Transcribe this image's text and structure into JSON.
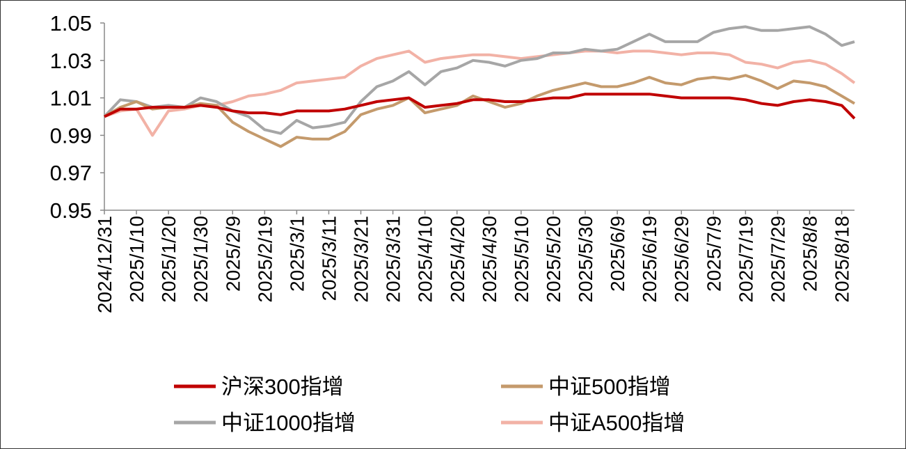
{
  "chart_data": {
    "type": "line",
    "x": [
      "2024/12/31",
      "2025/1/5",
      "2025/1/10",
      "2025/1/15",
      "2025/1/20",
      "2025/1/25",
      "2025/1/30",
      "2025/2/4",
      "2025/2/9",
      "2025/2/14",
      "2025/2/19",
      "2025/2/24",
      "2025/3/1",
      "2025/3/6",
      "2025/3/11",
      "2025/3/16",
      "2025/3/21",
      "2025/3/26",
      "2025/3/31",
      "2025/4/5",
      "2025/4/10",
      "2025/4/15",
      "2025/4/20",
      "2025/4/25",
      "2025/4/30",
      "2025/5/5",
      "2025/5/10",
      "2025/5/15",
      "2025/5/20",
      "2025/5/25",
      "2025/5/30",
      "2025/6/4",
      "2025/6/9",
      "2025/6/14",
      "2025/6/19",
      "2025/6/24",
      "2025/6/29",
      "2025/7/4",
      "2025/7/9",
      "2025/7/14",
      "2025/7/19",
      "2025/7/24",
      "2025/7/29",
      "2025/8/3",
      "2025/8/8",
      "2025/8/13",
      "2025/8/18",
      "2025/8/22"
    ],
    "xticks": [
      "2024/12/31",
      "2025/1/10",
      "2025/1/20",
      "2025/1/30",
      "2025/2/9",
      "2025/2/19",
      "2025/3/1",
      "2025/3/11",
      "2025/3/21",
      "2025/3/31",
      "2025/4/10",
      "2025/4/20",
      "2025/4/30",
      "2025/5/10",
      "2025/5/20",
      "2025/5/30",
      "2025/6/9",
      "2025/6/19",
      "2025/6/29",
      "2025/7/9",
      "2025/7/19",
      "2025/7/29",
      "2025/8/8",
      "2025/8/18"
    ],
    "ylim": [
      0.95,
      1.05
    ],
    "yticks": [
      0.95,
      0.97,
      0.99,
      1.01,
      1.03,
      1.05
    ],
    "grid": false,
    "series": [
      {
        "name": "沪深300指增",
        "color": "#c00000",
        "values": [
          1.0,
          1.004,
          1.004,
          1.005,
          1.005,
          1.005,
          1.006,
          1.005,
          1.003,
          1.002,
          1.002,
          1.001,
          1.003,
          1.003,
          1.003,
          1.004,
          1.006,
          1.008,
          1.009,
          1.01,
          1.005,
          1.006,
          1.007,
          1.009,
          1.009,
          1.008,
          1.008,
          1.009,
          1.01,
          1.01,
          1.012,
          1.012,
          1.012,
          1.012,
          1.012,
          1.011,
          1.01,
          1.01,
          1.01,
          1.01,
          1.009,
          1.007,
          1.006,
          1.008,
          1.009,
          1.008,
          1.006,
          0.999
        ]
      },
      {
        "name": "中证500指增",
        "color": "#c49a6c",
        "values": [
          1.0,
          1.005,
          1.008,
          1.004,
          1.005,
          1.005,
          1.007,
          1.006,
          0.997,
          0.992,
          0.988,
          0.984,
          0.989,
          0.988,
          0.988,
          0.992,
          1.001,
          1.004,
          1.006,
          1.01,
          1.002,
          1.004,
          1.006,
          1.011,
          1.008,
          1.005,
          1.007,
          1.011,
          1.014,
          1.016,
          1.018,
          1.016,
          1.016,
          1.018,
          1.021,
          1.018,
          1.017,
          1.02,
          1.021,
          1.02,
          1.022,
          1.019,
          1.015,
          1.019,
          1.018,
          1.016,
          1.011,
          1.007
        ]
      },
      {
        "name": "中证1000指增",
        "color": "#a6a6a6",
        "values": [
          1.0,
          1.009,
          1.008,
          1.005,
          1.006,
          1.005,
          1.01,
          1.008,
          1.003,
          1.0,
          0.993,
          0.991,
          0.998,
          0.994,
          0.995,
          0.997,
          1.008,
          1.016,
          1.019,
          1.024,
          1.017,
          1.024,
          1.026,
          1.03,
          1.029,
          1.027,
          1.03,
          1.031,
          1.034,
          1.034,
          1.036,
          1.035,
          1.036,
          1.04,
          1.044,
          1.04,
          1.04,
          1.04,
          1.045,
          1.047,
          1.048,
          1.046,
          1.046,
          1.047,
          1.048,
          1.044,
          1.038,
          1.04
        ]
      },
      {
        "name": "中证A500指增",
        "color": "#f2b2a6",
        "values": [
          1.0,
          1.003,
          1.004,
          0.99,
          1.003,
          1.004,
          1.006,
          1.006,
          1.008,
          1.011,
          1.012,
          1.014,
          1.018,
          1.019,
          1.02,
          1.021,
          1.027,
          1.031,
          1.033,
          1.035,
          1.029,
          1.031,
          1.032,
          1.033,
          1.033,
          1.032,
          1.031,
          1.032,
          1.033,
          1.034,
          1.035,
          1.035,
          1.034,
          1.035,
          1.035,
          1.034,
          1.033,
          1.034,
          1.034,
          1.033,
          1.029,
          1.028,
          1.026,
          1.029,
          1.03,
          1.028,
          1.023,
          1.018
        ]
      }
    ]
  }
}
